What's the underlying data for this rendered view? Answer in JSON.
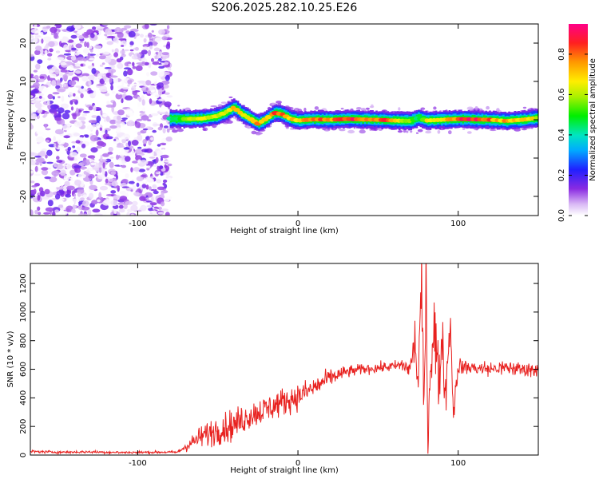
{
  "title": "S206.2025.282.10.25.E26",
  "chart_data": [
    {
      "type": "heatmap",
      "xlabel": "Height of straight line (km)",
      "ylabel": "Frequency (Hz)",
      "xlim": [
        -167,
        150
      ],
      "ylim": [
        -25,
        25
      ],
      "xticks": [
        -100,
        0,
        100
      ],
      "yticks": [
        -20,
        -10,
        0,
        10,
        20
      ],
      "xtick_labels": [
        "-100",
        "0",
        "100"
      ],
      "ytick_labels": [
        "-20",
        "-10",
        "0",
        "10",
        "20"
      ],
      "noise_region": {
        "x_from": -167,
        "x_to": -80,
        "description_value": "low amplitude broadband"
      },
      "ridge": {
        "x": [
          -80,
          -70,
          -60,
          -50,
          -45,
          -40,
          -35,
          -30,
          -25,
          -20,
          -15,
          -10,
          -5,
          0,
          10,
          20,
          30,
          40,
          50,
          60,
          70,
          75,
          80,
          90,
          100,
          110,
          120,
          130,
          140,
          150
        ],
        "freq": [
          0.3,
          0.2,
          0.3,
          1.0,
          2.0,
          3.2,
          1.5,
          0.3,
          -1.0,
          0.2,
          1.8,
          1.5,
          0.3,
          -0.2,
          0.1,
          0.0,
          0.2,
          0.1,
          0.0,
          -0.2,
          -0.3,
          0.5,
          -0.2,
          0.0,
          0.2,
          0.1,
          0.0,
          -0.3,
          0.0,
          0.5
        ],
        "amplitude": [
          0.5,
          0.6,
          0.7,
          0.7,
          0.75,
          0.8,
          0.75,
          0.7,
          0.8,
          0.7,
          0.95,
          0.9,
          0.75,
          0.8,
          0.85,
          0.85,
          0.95,
          0.9,
          0.9,
          0.85,
          0.6,
          0.5,
          0.7,
          0.8,
          0.9,
          0.95,
          0.85,
          0.8,
          0.75,
          0.7
        ]
      },
      "colorbar": {
        "label": "Normalized spectral amplitude",
        "range": [
          0.0,
          0.95
        ],
        "ticks": [
          0.0,
          0.2,
          0.4,
          0.6,
          0.8
        ],
        "tick_labels": [
          "0.0",
          "0.2",
          "0.4",
          "0.6",
          "0.8"
        ]
      }
    },
    {
      "type": "line",
      "xlabel": "Height of straight line (km)",
      "ylabel": "SNR (10 * v/v)",
      "xlim": [
        -167,
        150
      ],
      "ylim": [
        0,
        1340
      ],
      "xticks": [
        -100,
        0,
        100
      ],
      "yticks": [
        0,
        200,
        400,
        600,
        800,
        1000,
        1200
      ],
      "xtick_labels": [
        "-100",
        "0",
        "100"
      ],
      "ytick_labels": [
        "0",
        "200",
        "400",
        "600",
        "800",
        "1000",
        "1200"
      ],
      "color": "#e8211f",
      "series": [
        {
          "name": "SNR",
          "x": [
            -167,
            -150,
            -130,
            -110,
            -90,
            -75,
            -70,
            -60,
            -50,
            -40,
            -30,
            -20,
            -10,
            0,
            10,
            20,
            30,
            40,
            50,
            60,
            65,
            70,
            73,
            75,
            77,
            79,
            80,
            81,
            83,
            85,
            88,
            90,
            92,
            95,
            97,
            100,
            110,
            120,
            130,
            140,
            150
          ],
          "y": [
            25,
            20,
            22,
            18,
            20,
            20,
            60,
            130,
            180,
            210,
            280,
            320,
            370,
            410,
            470,
            540,
            580,
            600,
            610,
            620,
            630,
            600,
            800,
            500,
            1150,
            300,
            1330,
            120,
            700,
            900,
            500,
            850,
            400,
            950,
            300,
            620,
            610,
            600,
            610,
            600,
            600
          ],
          "spread": [
            12,
            10,
            10,
            10,
            10,
            10,
            40,
            90,
            120,
            120,
            110,
            110,
            110,
            100,
            90,
            70,
            50,
            40,
            40,
            40,
            60,
            80,
            200,
            250,
            300,
            350,
            300,
            200,
            250,
            250,
            200,
            200,
            180,
            150,
            120,
            60,
            60,
            60,
            60,
            60,
            60
          ]
        }
      ]
    }
  ]
}
